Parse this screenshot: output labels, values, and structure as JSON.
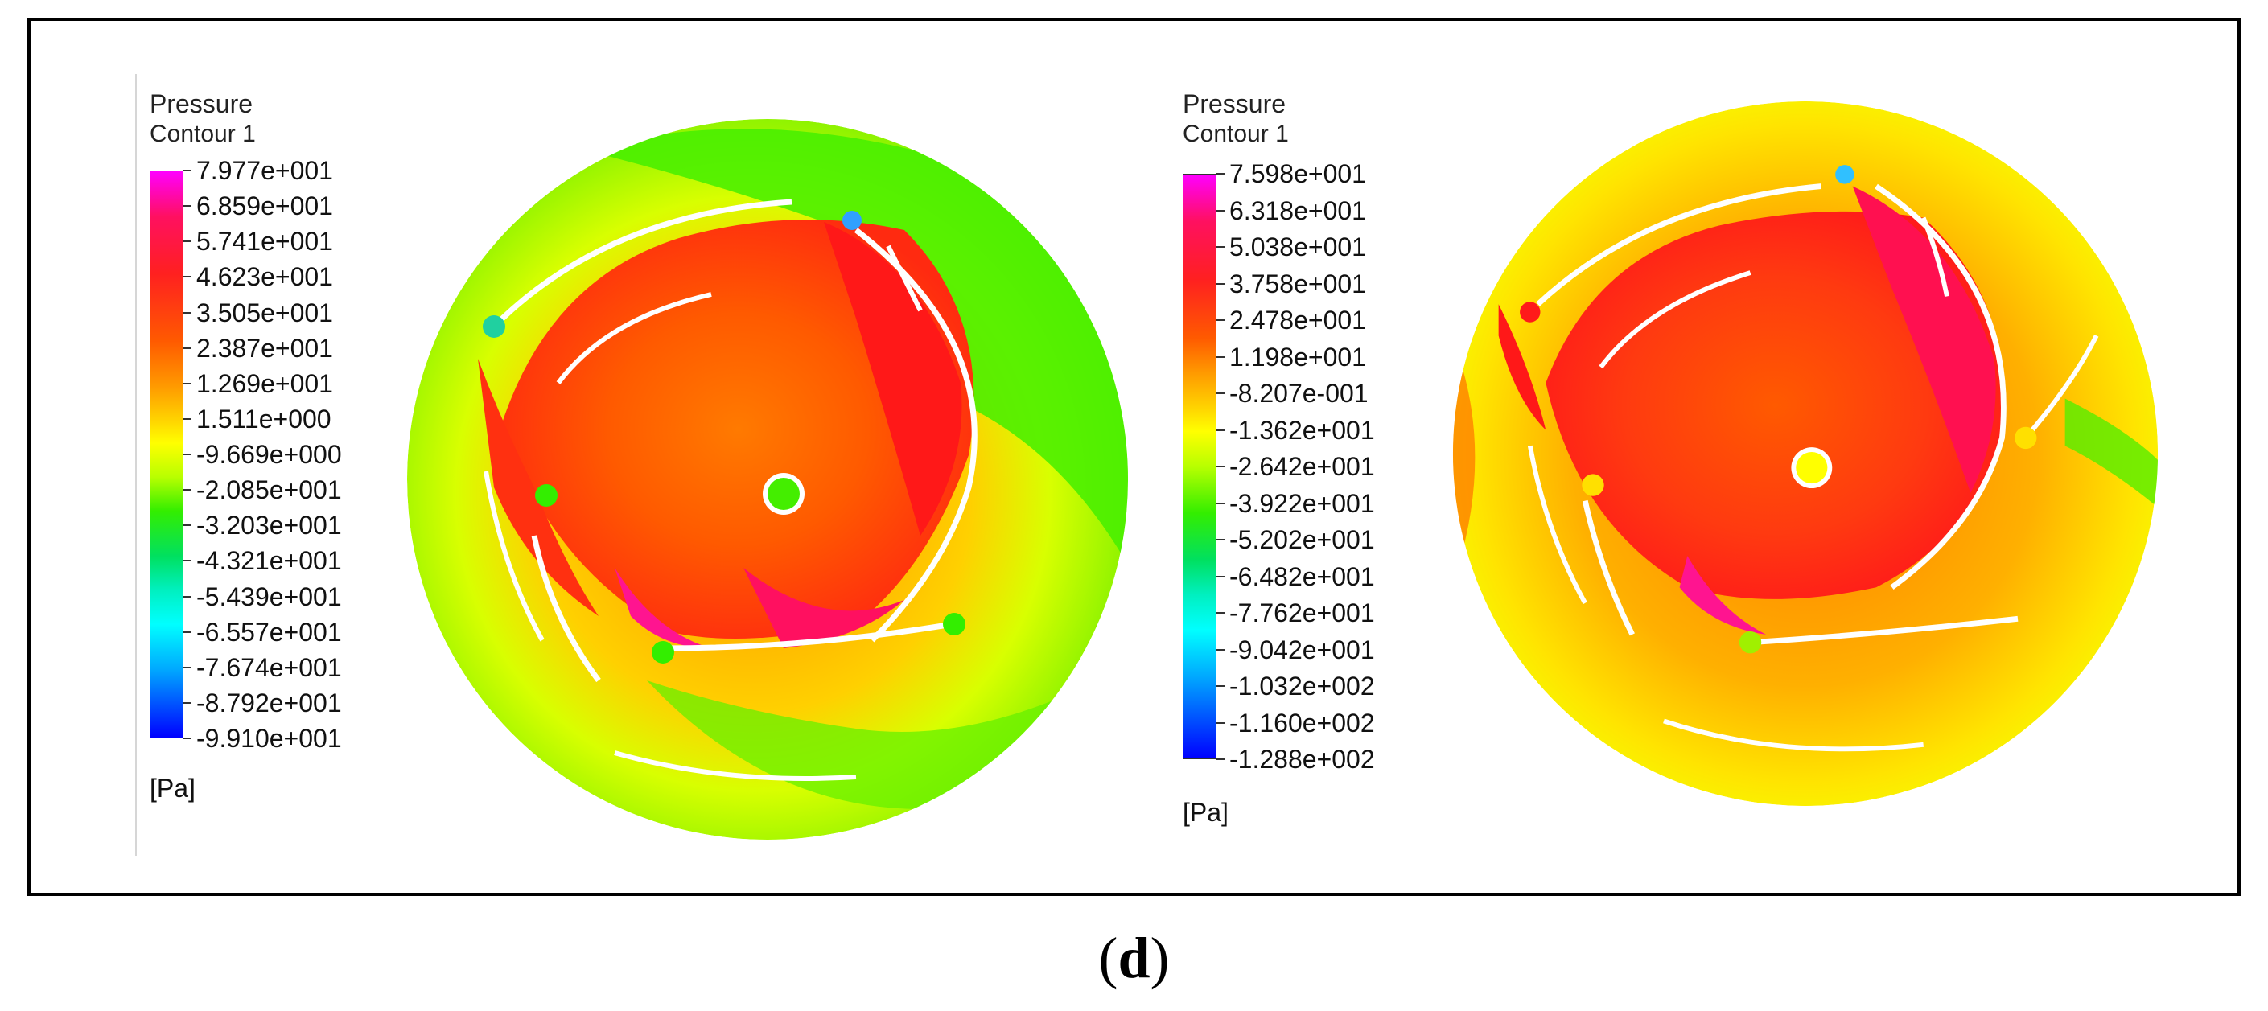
{
  "figure_label_open": "(",
  "figure_label_letter": "d",
  "figure_label_close": ")",
  "panels": [
    {
      "title_line1": "Pressure",
      "title_line2": "Contour 1",
      "unit": "[Pa]",
      "ticks": [
        "7.977e+001",
        "6.859e+001",
        "5.741e+001",
        "4.623e+001",
        "3.505e+001",
        "2.387e+001",
        "1.269e+001",
        "1.511e+000",
        "-9.669e+000",
        "-2.085e+001",
        "-3.203e+001",
        "-4.321e+001",
        "-5.439e+001",
        "-6.557e+001",
        "-7.674e+001",
        "-8.792e+001",
        "-9.910e+001"
      ]
    },
    {
      "title_line1": "Pressure",
      "title_line2": "Contour 1",
      "unit": "[Pa]",
      "ticks": [
        "7.598e+001",
        "6.318e+001",
        "5.038e+001",
        "3.758e+001",
        "2.478e+001",
        "1.198e+001",
        "-8.207e-001",
        "-1.362e+001",
        "-2.642e+001",
        "-3.922e+001",
        "-5.202e+001",
        "-6.482e+001",
        "-7.762e+001",
        "-9.042e+001",
        "-1.032e+002",
        "-1.160e+002",
        "-1.288e+002"
      ]
    }
  ],
  "colors": {
    "max": "#ff00ff",
    "red": "#ff1a1a",
    "orange": "#ff8a00",
    "yellow": "#ffff00",
    "green": "#33ee00",
    "cyan": "#00ffff",
    "min": "#0000ff"
  }
}
